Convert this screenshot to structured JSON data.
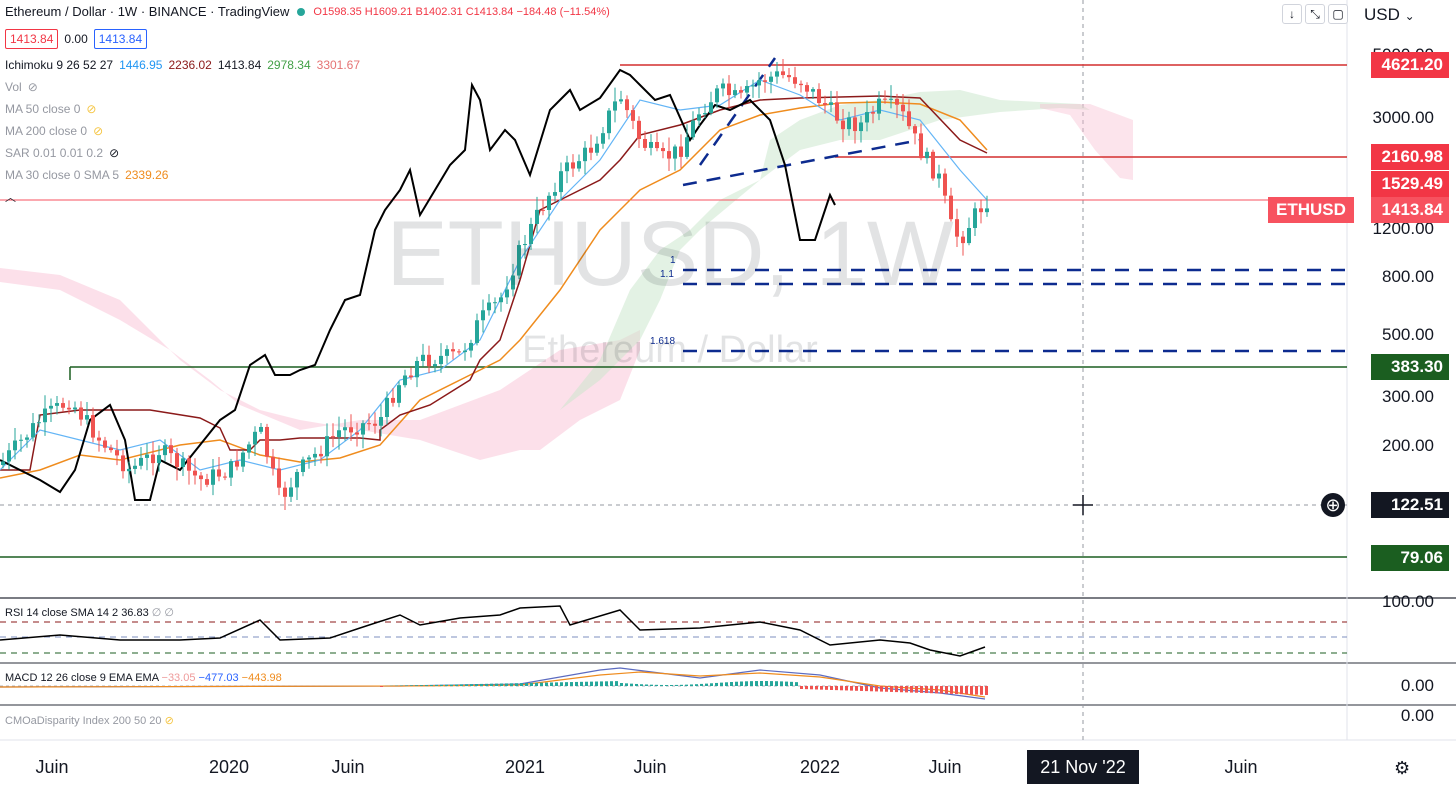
{
  "header": {
    "title": "Ethereum / Dollar · 1W · BINANCE · TradingView",
    "ohlc": "O1598.35  H1609.21  B1402.31  C1413.84  −184.48 (−11.54%)",
    "price_box_1": "1413.84",
    "spread": "0.00",
    "price_box_2": "1413.84",
    "currency": "USD"
  },
  "legend": {
    "ichimoku_name": "Ichimoku 9 26 52 27",
    "ichimoku_v1": "1446.95",
    "ichimoku_v2": "2236.02",
    "ichimoku_v3": "1413.84",
    "ichimoku_v4": "2978.34",
    "ichimoku_v5": "3301.67",
    "vol": "Vol",
    "ma50": "MA 50 close 0",
    "ma200": "MA 200 close 0",
    "sar": "SAR 0.01 0.01 0.2",
    "ma30": "MA 30 close 0 SMA 5",
    "ma30_value": "2339.26"
  },
  "watermark": {
    "symbol": "ETHUSD, 1W",
    "name": "Ethereum / Dollar"
  },
  "fib_labels": [
    "1",
    "1.1",
    "1.618"
  ],
  "price_tags": [
    {
      "label": "4621.20",
      "color": "#f23645"
    },
    {
      "label": "2160.98",
      "color": "#f23645"
    },
    {
      "label": "1529.49",
      "color": "#f23645"
    },
    {
      "label": "1413.84",
      "color": "#f7525f"
    },
    {
      "label": "383.30",
      "color": "#1b5e20"
    },
    {
      "label": "122.51",
      "color": "#131722"
    },
    {
      "label": "79.06",
      "color": "#1b5e20"
    }
  ],
  "ethusd_tag": "ETHUSD",
  "axis_ticks": [
    "5000.00",
    "3000.00",
    "1200.00",
    "800.00",
    "500.00",
    "300.00",
    "200.00"
  ],
  "rsi": {
    "label": "RSI 14 close SMA 14 2",
    "value": "36.83",
    "extra": "∅ ∅",
    "axis": "100.00"
  },
  "macd": {
    "label": "MACD 12 26 close 9 EMA EMA",
    "v1": "−33.05",
    "v2": "−477.03",
    "v3": "−443.98",
    "axis": "0.00"
  },
  "cmo": {
    "label": "CMOaDisparity Index 200 50 20",
    "axis": "0.00"
  },
  "time_axis": [
    "Juin",
    "2020",
    "Juin",
    "2021",
    "Juin",
    "2022",
    "Juin",
    "Juin"
  ],
  "crosshair_date": "21 Nov '22",
  "colors": {
    "bull": "#26a69a",
    "bear": "#ef5350",
    "line_red": "#d32f2f",
    "line_green": "#1b5e20",
    "fib_blue": "#0d2b8f"
  },
  "chart_data": {
    "type": "line",
    "title": "ETHUSD, 1W",
    "scale": "log",
    "ylim": [
      79.06,
      5000
    ],
    "series": [
      {
        "name": "ETHUSD",
        "x": [
          "Juin",
          "2020",
          "Juin",
          "2021",
          "Juin",
          "2022",
          "Juin"
        ],
        "values": [
          250,
          130,
          230,
          730,
          2600,
          3700,
          1100
        ]
      }
    ],
    "horizontal_levels": [
      4621.2,
      2160.98,
      1529.49,
      1413.84,
      383.3,
      79.06
    ],
    "fib_levels": [
      {
        "label": "1",
        "value": 880
      },
      {
        "label": "1.1",
        "value": 780
      },
      {
        "label": "1.618",
        "value": 440
      }
    ]
  }
}
